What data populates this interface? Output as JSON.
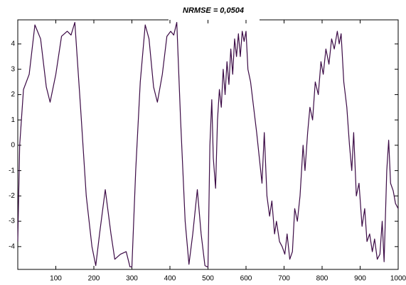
{
  "chart_data": {
    "type": "line",
    "title": "NRMSE =  0,0504",
    "x": [
      0,
      5,
      15,
      30,
      45,
      60,
      75,
      85,
      100,
      115,
      130,
      140,
      150,
      165,
      180,
      195,
      205,
      215,
      230,
      245,
      255,
      270,
      285,
      295,
      300,
      310,
      322,
      335,
      345,
      357,
      367,
      380,
      392,
      402,
      410,
      418,
      428,
      440,
      450,
      460,
      472,
      482,
      492,
      498,
      500,
      505,
      510,
      514,
      520,
      525,
      530,
      535,
      540,
      545,
      550,
      555,
      560,
      565,
      570,
      575,
      580,
      585,
      590,
      595,
      600,
      605,
      612,
      620,
      628,
      635,
      642,
      648,
      655,
      662,
      668,
      675,
      680,
      688,
      695,
      702,
      708,
      715,
      722,
      728,
      735,
      742,
      750,
      755,
      762,
      768,
      775,
      782,
      790,
      797,
      803,
      810,
      818,
      825,
      832,
      840,
      845,
      850,
      857,
      865,
      872,
      878,
      883,
      890,
      897,
      905,
      912,
      918,
      925,
      932,
      938,
      945,
      952,
      958,
      963,
      970,
      975,
      980,
      987,
      993,
      1000
    ],
    "series": [
      {
        "color": "#3b0a45",
        "values": [
          -3.8,
          0,
          2.2,
          2.8,
          4.75,
          4.2,
          2.3,
          1.7,
          2.8,
          4.3,
          4.5,
          4.35,
          4.85,
          1.5,
          -2,
          -4,
          -4.75,
          -3.5,
          -1.75,
          -3.5,
          -4.5,
          -4.3,
          -4.2,
          -4.8,
          -4.8,
          -1,
          2.5,
          4.75,
          4.2,
          2.3,
          1.7,
          2.8,
          4.3,
          4.5,
          4.35,
          4.85,
          1,
          -3,
          -4.7,
          -3.5,
          -1.75,
          -3.5,
          -4.75,
          -4.8,
          -4.8,
          0,
          1.8,
          -0.5,
          -1.7,
          1,
          2.2,
          1.5,
          3,
          2,
          3.3,
          2.4,
          3.8,
          2.8,
          4.2,
          3.5,
          4.4,
          3.5,
          4.5,
          4.1,
          4.5,
          3,
          2.5,
          1.5,
          0.5,
          -0.5,
          -1.5,
          0.5,
          -2,
          -2.8,
          -2.2,
          -3.5,
          -3,
          -3.8,
          -4,
          -4.3,
          -3.5,
          -4.5,
          -4.2,
          -2.5,
          -3,
          -2,
          0,
          -1,
          0.5,
          1.5,
          1,
          2.5,
          2,
          3.3,
          2.8,
          3.8,
          3.2,
          4.2,
          3.8,
          4.5,
          4,
          4.4,
          2.5,
          1.5,
          0,
          -1,
          0.5,
          -2,
          -1.5,
          -3.2,
          -2.5,
          -3.8,
          -3.5,
          -4.2,
          -3.7,
          -4.5,
          -4.3,
          -3,
          -4.6,
          -1,
          0.2,
          -1.5,
          -1.8,
          -2.3,
          -2.5
        ]
      }
    ],
    "xlim": [
      0,
      1000
    ],
    "xticks": [
      100,
      200,
      300,
      400,
      500,
      600,
      700,
      800,
      900,
      1000
    ],
    "ylim": [
      -4.9,
      4.95
    ],
    "yticks": [
      -4,
      -3,
      -2,
      -1,
      0,
      1,
      2,
      3,
      4
    ]
  }
}
